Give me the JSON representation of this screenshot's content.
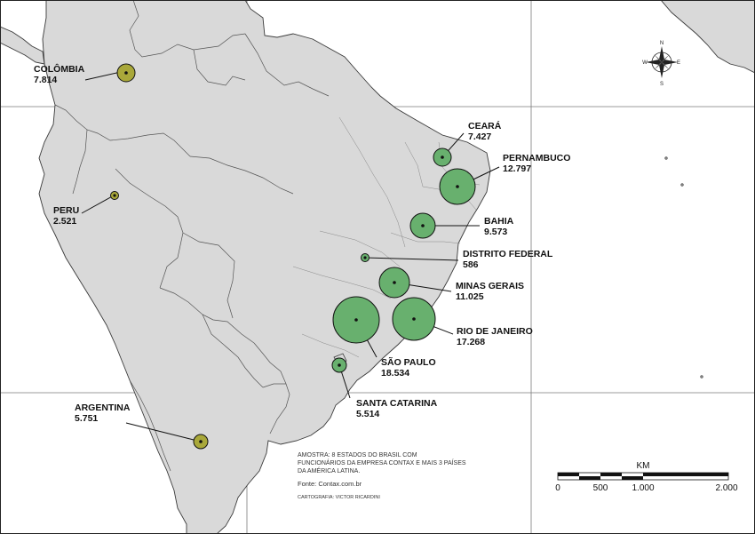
{
  "markers": [
    {
      "id": "colombia",
      "name": "COLÔMBIA",
      "value": "7.814",
      "color": "#a9a83a"
    },
    {
      "id": "peru",
      "name": "PERU",
      "value": "2.521",
      "color": "#a9a83a"
    },
    {
      "id": "argentina",
      "name": "ARGENTINA",
      "value": "5.751",
      "color": "#a9a83a"
    },
    {
      "id": "ceara",
      "name": "CEARÁ",
      "value": "7.427",
      "color": "#68b06e"
    },
    {
      "id": "pernambuco",
      "name": "PERNAMBUCO",
      "value": "12.797",
      "color": "#68b06e"
    },
    {
      "id": "bahia",
      "name": "BAHIA",
      "value": "9.573",
      "color": "#68b06e"
    },
    {
      "id": "distrito-federal",
      "name": "DISTRITO FEDERAL",
      "value": "586",
      "color": "#68b06e"
    },
    {
      "id": "minas-gerais",
      "name": "MINAS GERAIS",
      "value": "11.025",
      "color": "#68b06e"
    },
    {
      "id": "rio-de-janeiro",
      "name": "RIO DE JANEIRO",
      "value": "17.268",
      "color": "#68b06e"
    },
    {
      "id": "sao-paulo",
      "name": "SÃO PAULO",
      "value": "18.534",
      "color": "#68b06e"
    },
    {
      "id": "santa-catarina",
      "name": "SANTA CATARINA",
      "value": "5.514",
      "color": "#68b06e"
    }
  ],
  "note": {
    "line1": "AMOSTRA: 8 ESTADOS DO BRASIL COM",
    "line2": "FUNCIONÁRIOS DA EMPRESA CONTAX E MAIS 3 PAÍSES",
    "line3": "DA AMÉRICA LATINA.",
    "source": "Fonte: Contax.com.br",
    "credit": "CARTOGRAFIA: VICTOR RICARDINI"
  },
  "scale": {
    "unit": "KM",
    "ticks": [
      "0",
      "500",
      "1.000",
      "2.000"
    ]
  },
  "compass": {
    "n": "N",
    "s": "S",
    "e": "E",
    "w": "W"
  },
  "colors": {
    "land": "#d9d9d9",
    "ocean": "#ffffff",
    "border": "#444444",
    "brazil_marker": "#68b06e",
    "foreign_marker": "#a9a83a"
  }
}
